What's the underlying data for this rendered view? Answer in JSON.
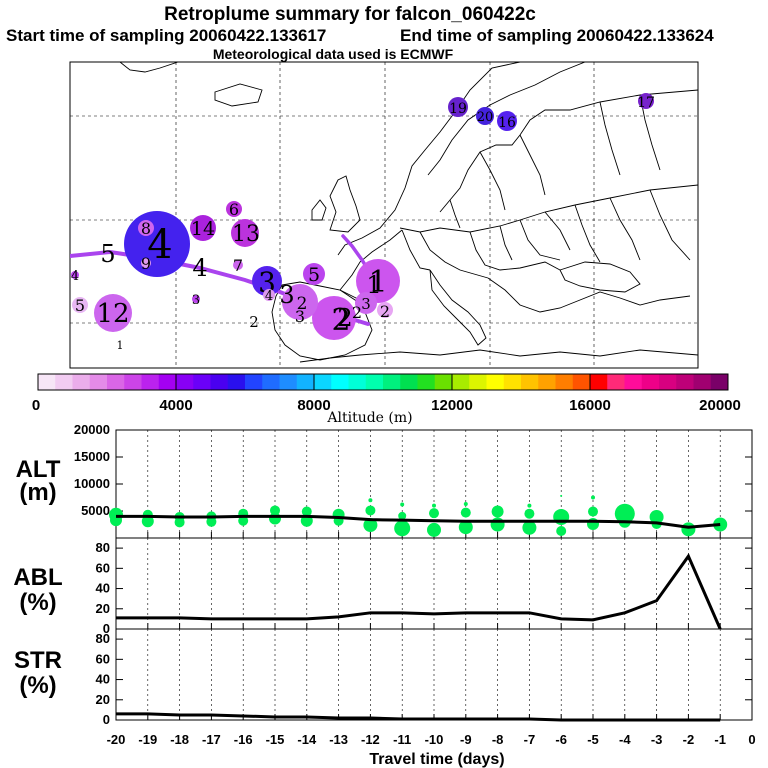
{
  "header": {
    "title": "Retroplume summary for falcon_060422c",
    "start": "Start time of sampling 20060422.133617",
    "end": "End time of sampling 20060422.133624",
    "meteo": "Meteorological data used is ECMWF"
  },
  "colorbar": {
    "label": "Altitude (m)",
    "tick_labels": [
      "0",
      "4000",
      "8000",
      "12000",
      "16000",
      "20000"
    ],
    "colors": [
      "#f7e6f7",
      "#f2ccf2",
      "#ebadeb",
      "#e48be8",
      "#da66e6",
      "#cc44e8",
      "#bb22ee",
      "#a300f2",
      "#8800f5",
      "#6b00f8",
      "#4a00f0",
      "#2a10ee",
      "#2244ff",
      "#1f6cff",
      "#1e8dff",
      "#12b3ff",
      "#0bd6ff",
      "#00ffff",
      "#00ffd8",
      "#00ffae",
      "#00f07e",
      "#00e050",
      "#22e020",
      "#6ae000",
      "#a8ec00",
      "#ddf500",
      "#ffff00",
      "#ffe200",
      "#ffc300",
      "#ffa200",
      "#ff7e00",
      "#ff5400",
      "#ff0000",
      "#ff2a78",
      "#ff0c9a",
      "#ee0088",
      "#d80080",
      "#be0078",
      "#a00070",
      "#7a0068"
    ]
  },
  "map": {
    "trajectory_color": "#aa44ee",
    "clusters": [
      {
        "label": "1",
        "size": 22,
        "color": "#cc55ee"
      },
      {
        "label": "2",
        "size": 22,
        "color": "#cc55ee"
      },
      {
        "label": "3",
        "size": 15,
        "color": "#5522ee"
      },
      {
        "label": "4",
        "size": 33,
        "color": "#4422ee"
      },
      {
        "label": "12",
        "size": 19,
        "color": "#cc66ee"
      },
      {
        "label": "13",
        "size": 14,
        "color": "#bb33dd"
      },
      {
        "label": "14",
        "size": 13,
        "color": "#aa22dd"
      },
      {
        "label": "5",
        "size": 11,
        "color": "#bb44ee"
      },
      {
        "label": "6",
        "size": 8,
        "color": "#bb33dd"
      },
      {
        "label": "8",
        "size": 8,
        "color": "#d066ee"
      },
      {
        "label": "19",
        "size": 10,
        "color": "#6622cc"
      },
      {
        "label": "20",
        "size": 9,
        "color": "#4422dd"
      },
      {
        "label": "16",
        "size": 10,
        "color": "#5522ee"
      },
      {
        "label": "17",
        "size": 8,
        "color": "#7722cc"
      },
      {
        "label": "3",
        "size": 11,
        "color": "#cc66ee"
      },
      {
        "label": "2",
        "size": 18,
        "color": "#cc66ee"
      },
      {
        "label": "2",
        "size": 8,
        "color": "#e7a6f3"
      },
      {
        "label": "5",
        "size": 8,
        "color": "#e7b6f3"
      },
      {
        "label": "4",
        "size": 4,
        "color": "#bb44ee"
      },
      {
        "label": "3",
        "size": 4,
        "color": "#bb44ee"
      },
      {
        "label": "7",
        "size": 5,
        "color": "#cc66ee"
      },
      {
        "label": "9",
        "size": 5,
        "color": "#e09af0"
      },
      {
        "label": "4",
        "size": 6,
        "color": "#dd99ee"
      },
      {
        "label": "2",
        "size": 0,
        "color": "#ffffff"
      },
      {
        "label": "1",
        "size": 0,
        "color": "#ffffff"
      }
    ],
    "trajectory_labels": [
      "5",
      "4",
      "3",
      "2",
      "2",
      "3",
      "1"
    ]
  },
  "chart_data": [
    {
      "type": "scatter",
      "panel": "altitude",
      "ylabel": [
        "ALT",
        "(m)"
      ],
      "ylim": [
        0,
        20000
      ],
      "yticks": [
        5000,
        10000,
        15000,
        20000
      ],
      "y_tick_labels": [
        "5000",
        "10000",
        "15000",
        "20000"
      ],
      "x_tick_labels": [],
      "line": {
        "x": [
          -20,
          -19,
          -18,
          -17,
          -16,
          -15,
          -14,
          -13,
          -12,
          -11,
          -10,
          -9,
          -8,
          -7,
          -6,
          -5,
          -4,
          -3,
          -2,
          -1
        ],
        "y": [
          4000,
          4000,
          3900,
          3900,
          4000,
          4000,
          4000,
          3800,
          3400,
          3300,
          3200,
          3100,
          3100,
          3100,
          3100,
          3100,
          3000,
          2800,
          2000,
          2500
        ]
      },
      "points_color": "#00ee55",
      "points": [
        {
          "x": -20,
          "y": 4300,
          "r": 7
        },
        {
          "x": -20,
          "y": 3300,
          "r": 6
        },
        {
          "x": -19,
          "y": 4300,
          "r": 5
        },
        {
          "x": -19,
          "y": 3100,
          "r": 6
        },
        {
          "x": -18,
          "y": 3900,
          "r": 5
        },
        {
          "x": -18,
          "y": 2900,
          "r": 5
        },
        {
          "x": -17,
          "y": 4000,
          "r": 5
        },
        {
          "x": -17,
          "y": 3000,
          "r": 5
        },
        {
          "x": -16,
          "y": 4500,
          "r": 5
        },
        {
          "x": -16,
          "y": 3200,
          "r": 5
        },
        {
          "x": -15,
          "y": 5100,
          "r": 5
        },
        {
          "x": -15,
          "y": 3600,
          "r": 6
        },
        {
          "x": -14,
          "y": 4900,
          "r": 5
        },
        {
          "x": -14,
          "y": 3200,
          "r": 6
        },
        {
          "x": -13,
          "y": 4300,
          "r": 6
        },
        {
          "x": -13,
          "y": 3200,
          "r": 5
        },
        {
          "x": -12,
          "y": 7000,
          "r": 2
        },
        {
          "x": -12,
          "y": 5100,
          "r": 5
        },
        {
          "x": -12,
          "y": 2400,
          "r": 7
        },
        {
          "x": -11,
          "y": 6200,
          "r": 2
        },
        {
          "x": -11,
          "y": 4100,
          "r": 4
        },
        {
          "x": -11,
          "y": 1800,
          "r": 8
        },
        {
          "x": -10,
          "y": 6000,
          "r": 2
        },
        {
          "x": -10,
          "y": 4600,
          "r": 5
        },
        {
          "x": -10,
          "y": 1500,
          "r": 7
        },
        {
          "x": -9,
          "y": 6300,
          "r": 2
        },
        {
          "x": -9,
          "y": 4700,
          "r": 5
        },
        {
          "x": -9,
          "y": 2000,
          "r": 7
        },
        {
          "x": -8,
          "y": 4900,
          "r": 6
        },
        {
          "x": -8,
          "y": 2500,
          "r": 7
        },
        {
          "x": -7,
          "y": 6000,
          "r": 2
        },
        {
          "x": -7,
          "y": 4500,
          "r": 5
        },
        {
          "x": -7,
          "y": 1900,
          "r": 7
        },
        {
          "x": -6,
          "y": 7800,
          "r": 1
        },
        {
          "x": -6,
          "y": 3900,
          "r": 8
        },
        {
          "x": -6,
          "y": 1300,
          "r": 5
        },
        {
          "x": -5,
          "y": 7500,
          "r": 2
        },
        {
          "x": -5,
          "y": 4900,
          "r": 5
        },
        {
          "x": -5,
          "y": 2600,
          "r": 6
        },
        {
          "x": -4,
          "y": 4500,
          "r": 10
        },
        {
          "x": -4,
          "y": 3000,
          "r": 6
        },
        {
          "x": -3,
          "y": 3900,
          "r": 7
        },
        {
          "x": -3,
          "y": 2600,
          "r": 5
        },
        {
          "x": -2,
          "y": 1600,
          "r": 7
        },
        {
          "x": -1,
          "y": 2500,
          "r": 7
        }
      ]
    },
    {
      "type": "line",
      "panel": "abl",
      "ylabel": [
        "ABL",
        "(%)"
      ],
      "ylim": [
        0,
        90
      ],
      "yticks": [
        0,
        20,
        40,
        60,
        80
      ],
      "y_tick_labels": [
        "0",
        "20",
        "40",
        "60",
        "80"
      ],
      "x_tick_labels": [],
      "series": [
        {
          "name": "ABL",
          "x": [
            -20,
            -19,
            -18,
            -17,
            -16,
            -15,
            -14,
            -13,
            -12,
            -11,
            -10,
            -9,
            -8,
            -7,
            -6,
            -5,
            -4,
            -3,
            -2,
            -1
          ],
          "y": [
            11,
            11,
            11,
            10,
            10,
            10,
            10,
            12,
            16,
            16,
            15,
            16,
            16,
            16,
            10,
            9,
            16,
            28,
            72,
            0
          ]
        }
      ]
    },
    {
      "type": "line",
      "panel": "str",
      "ylabel": [
        "STR",
        "(%)"
      ],
      "ylim": [
        0,
        90
      ],
      "yticks": [
        0,
        20,
        40,
        60,
        80
      ],
      "y_tick_labels": [
        "0",
        "20",
        "40",
        "60",
        "80"
      ],
      "xlabel": "Travel time (days)",
      "xlim": [
        -20,
        0
      ],
      "x_tick_labels": [
        "-20",
        "-19",
        "-18",
        "-17",
        "-16",
        "-15",
        "-14",
        "-13",
        "-12",
        "-11",
        "-10",
        "-9",
        "-8",
        "-7",
        "-6",
        "-5",
        "-4",
        "-3",
        "-2",
        "-1",
        "0"
      ],
      "series": [
        {
          "name": "STR",
          "x": [
            -20,
            -19,
            -18,
            -17,
            -16,
            -15,
            -14,
            -13,
            -12,
            -11,
            -10,
            -9,
            -8,
            -7,
            -6,
            -5,
            -4,
            -3,
            -2,
            -1
          ],
          "y": [
            6,
            6,
            5,
            5,
            4,
            3,
            3,
            2,
            2,
            1,
            1,
            1,
            1,
            1,
            0,
            0,
            0,
            0,
            0,
            0
          ]
        }
      ]
    }
  ]
}
